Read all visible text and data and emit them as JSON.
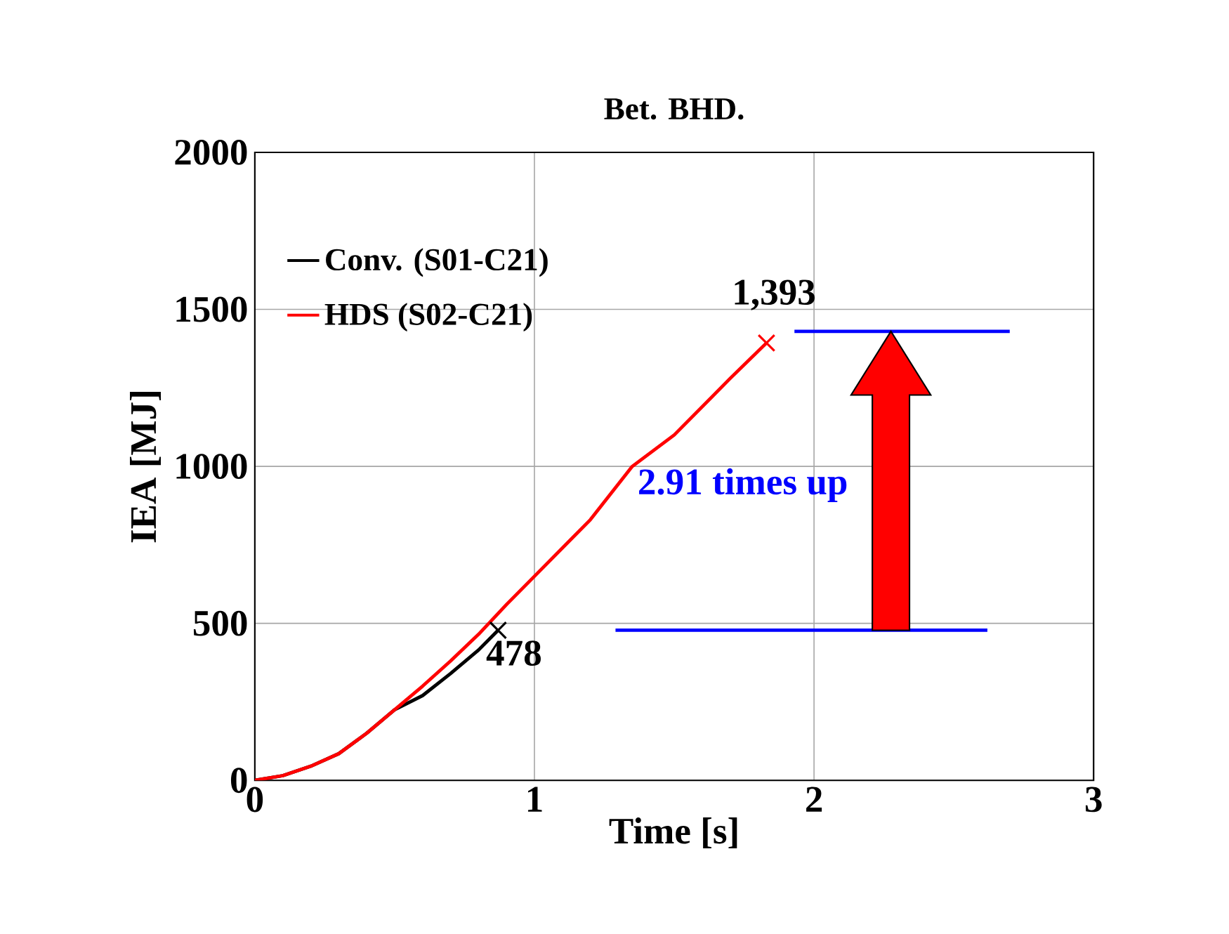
{
  "chart_data": {
    "type": "line",
    "title": "Bet. BHD.",
    "xlabel": "Time [s]",
    "ylabel": "IEA [MJ]",
    "xlim": [
      0,
      3
    ],
    "xticks": [
      0,
      1,
      2,
      3
    ],
    "ylim": [
      0,
      2000
    ],
    "yticks": [
      0,
      500,
      1000,
      1500,
      2000
    ],
    "grid": true,
    "legend": "top left",
    "marker": "none",
    "line_style": "solid",
    "series": [
      {
        "name": "Conv. (S01-C21)",
        "color": "#000000",
        "x": [
          0,
          0.1,
          0.2,
          0.3,
          0.4,
          0.5,
          0.6,
          0.7,
          0.8,
          0.87
        ],
        "values": [
          0,
          15,
          45,
          85,
          150,
          225,
          270,
          340,
          415,
          478
        ]
      },
      {
        "name": "HDS (S02-C21)",
        "color": "#ff0000",
        "x": [
          0,
          0.1,
          0.2,
          0.3,
          0.4,
          0.5,
          0.6,
          0.7,
          0.8,
          0.9,
          1.0,
          1.2,
          1.35,
          1.5,
          1.6,
          1.7,
          1.83
        ],
        "values": [
          0,
          15,
          45,
          85,
          150,
          225,
          300,
          380,
          465,
          560,
          650,
          830,
          1000,
          1100,
          1190,
          1280,
          1393
        ]
      },
      {
        "type": "scatter",
        "marker": "cross",
        "color": "#000000",
        "x": [
          0.87
        ],
        "values": [
          478
        ]
      },
      {
        "type": "scatter",
        "marker": "cross",
        "color": "#ff0000",
        "x": [
          1.83
        ],
        "values": [
          1393
        ]
      },
      {
        "color": "#0000ff",
        "x": [
          1.29,
          2.62
        ],
        "values": [
          478,
          478
        ]
      },
      {
        "color": "#0000ff",
        "x": [
          1.93,
          2.7
        ],
        "values": [
          1430,
          1430
        ]
      }
    ],
    "annotations": [
      {
        "text": "1,393",
        "x": 1.83,
        "y": 1393
      },
      {
        "text": "478",
        "x": 0.87,
        "y": 478
      },
      "2.91 times up"
    ]
  }
}
